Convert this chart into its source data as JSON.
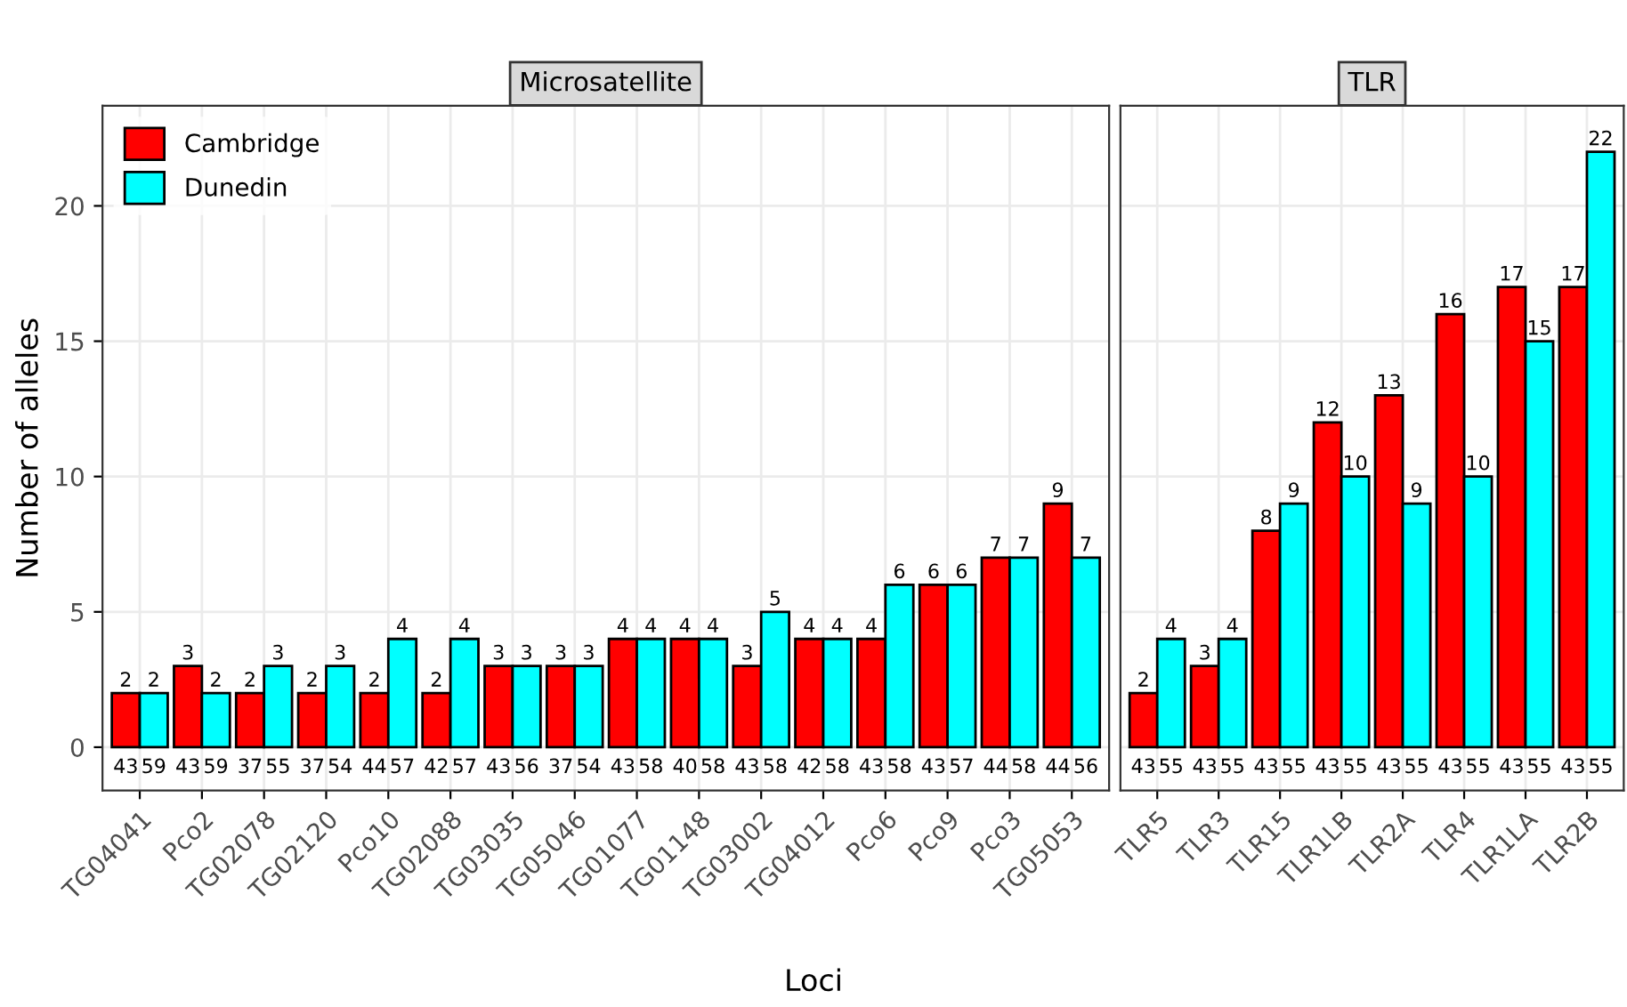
{
  "chart_data": [
    {
      "type": "bar",
      "title": "Microsatellite",
      "xlabel": "Loci",
      "ylabel": "Number of alleles",
      "categories": [
        "TG04041",
        "Pco2",
        "TG02078",
        "TG02120",
        "Pco10",
        "TG02088",
        "TG03035",
        "TG05046",
        "TG01077",
        "TG01148",
        "TG03002",
        "TG04012",
        "Pco6",
        "Pco9",
        "Pco3",
        "TG05053"
      ],
      "series": [
        {
          "name": "Cambridge",
          "color": "#ff0000",
          "values": [
            2,
            3,
            2,
            2,
            2,
            2,
            3,
            3,
            4,
            4,
            3,
            4,
            4,
            6,
            7,
            9
          ]
        },
        {
          "name": "Dunedin",
          "color": "#00ffff",
          "values": [
            2,
            2,
            3,
            3,
            4,
            4,
            3,
            3,
            4,
            4,
            5,
            4,
            6,
            6,
            7,
            7
          ]
        }
      ],
      "annotations": [
        "43",
        "59",
        "43",
        "59",
        "37",
        "55",
        "37",
        "54",
        "44",
        "57",
        "42",
        "57",
        "43",
        "56",
        "37",
        "54",
        "43",
        "58",
        "40",
        "58",
        "43",
        "58",
        "42",
        "58",
        "43",
        "58",
        "43",
        "57",
        "44",
        "58",
        "44",
        "56"
      ],
      "data_labels": true,
      "ylim": [
        -1.6,
        23.7
      ],
      "yticks": [
        0,
        5,
        10,
        15,
        20
      ],
      "grid": true,
      "legend": "top left"
    },
    {
      "type": "bar",
      "title": "TLR",
      "categories": [
        "TLR5",
        "TLR3",
        "TLR15",
        "TLR1LB",
        "TLR2A",
        "TLR4",
        "TLR1LA",
        "TLR2B"
      ],
      "series": [
        {
          "color": "#ff0000",
          "values": [
            2,
            3,
            8,
            12,
            13,
            16,
            17,
            17
          ]
        },
        {
          "color": "#00ffff",
          "values": [
            4,
            4,
            9,
            10,
            9,
            10,
            15,
            22
          ]
        }
      ],
      "annotations": [
        "43",
        "55",
        "43",
        "55",
        "43",
        "55",
        "43",
        "55",
        "43",
        "55",
        "43",
        "55",
        "43",
        "55",
        "43",
        "55"
      ],
      "data_labels": true,
      "ylim": [
        -1.6,
        23.7
      ],
      "yticks": [
        0,
        5,
        10,
        15,
        20
      ],
      "grid": true,
      "tick_labels": "x"
    }
  ]
}
